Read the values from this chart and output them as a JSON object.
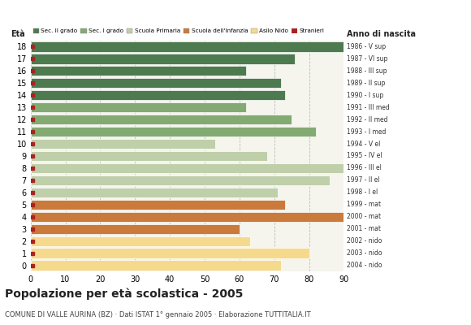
{
  "ages": [
    18,
    17,
    16,
    15,
    14,
    13,
    12,
    11,
    10,
    9,
    8,
    7,
    6,
    5,
    4,
    3,
    2,
    1,
    0
  ],
  "values": [
    90,
    76,
    62,
    72,
    73,
    62,
    75,
    82,
    53,
    68,
    90,
    86,
    71,
    73,
    90,
    60,
    63,
    80,
    72
  ],
  "right_labels": [
    "1986 - V sup",
    "1987 - VI sup",
    "1988 - III sup",
    "1989 - II sup",
    "1990 - I sup",
    "1991 - III med",
    "1992 - II med",
    "1993 - I med",
    "1994 - V el",
    "1995 - IV el",
    "1996 - III el",
    "1997 - II el",
    "1998 - I el",
    "1999 - mat",
    "2000 - mat",
    "2001 - mat",
    "2002 - nido",
    "2003 - nido",
    "2004 - nido"
  ],
  "colors": {
    "sec2": "#4d7a4f",
    "sec1": "#83aa72",
    "primaria": "#bfcfaa",
    "infanzia": "#ca7a3a",
    "nido": "#f5d98c",
    "stranieri": "#aa2222"
  },
  "bar_colors": [
    "sec2",
    "sec2",
    "sec2",
    "sec2",
    "sec2",
    "sec1",
    "sec1",
    "sec1",
    "primaria",
    "primaria",
    "primaria",
    "primaria",
    "primaria",
    "infanzia",
    "infanzia",
    "infanzia",
    "nido",
    "nido",
    "nido"
  ],
  "legend_labels": [
    "Sec. II grado",
    "Sec. I grado",
    "Scuola Primaria",
    "Scuola dell'Infanzia",
    "Asilo Nido",
    "Stranieri"
  ],
  "legend_colors": [
    "#4d7a4f",
    "#83aa72",
    "#bfcfaa",
    "#ca7a3a",
    "#f5d98c",
    "#aa2222"
  ],
  "title": "Popolazione per età scolastica - 2005",
  "subtitle": "COMUNE DI VALLE AURINA (BZ) · Dati ISTAT 1° gennaio 2005 · Elaborazione TUTTITALIA.IT",
  "xlabel_eta": "Età",
  "xlabel_anno": "Anno di nascita",
  "xlim": [
    0,
    90
  ],
  "xticks": [
    0,
    10,
    20,
    30,
    40,
    50,
    60,
    70,
    80,
    90
  ],
  "bg_color": "#ffffff",
  "plot_bg": "#f5f5ee"
}
